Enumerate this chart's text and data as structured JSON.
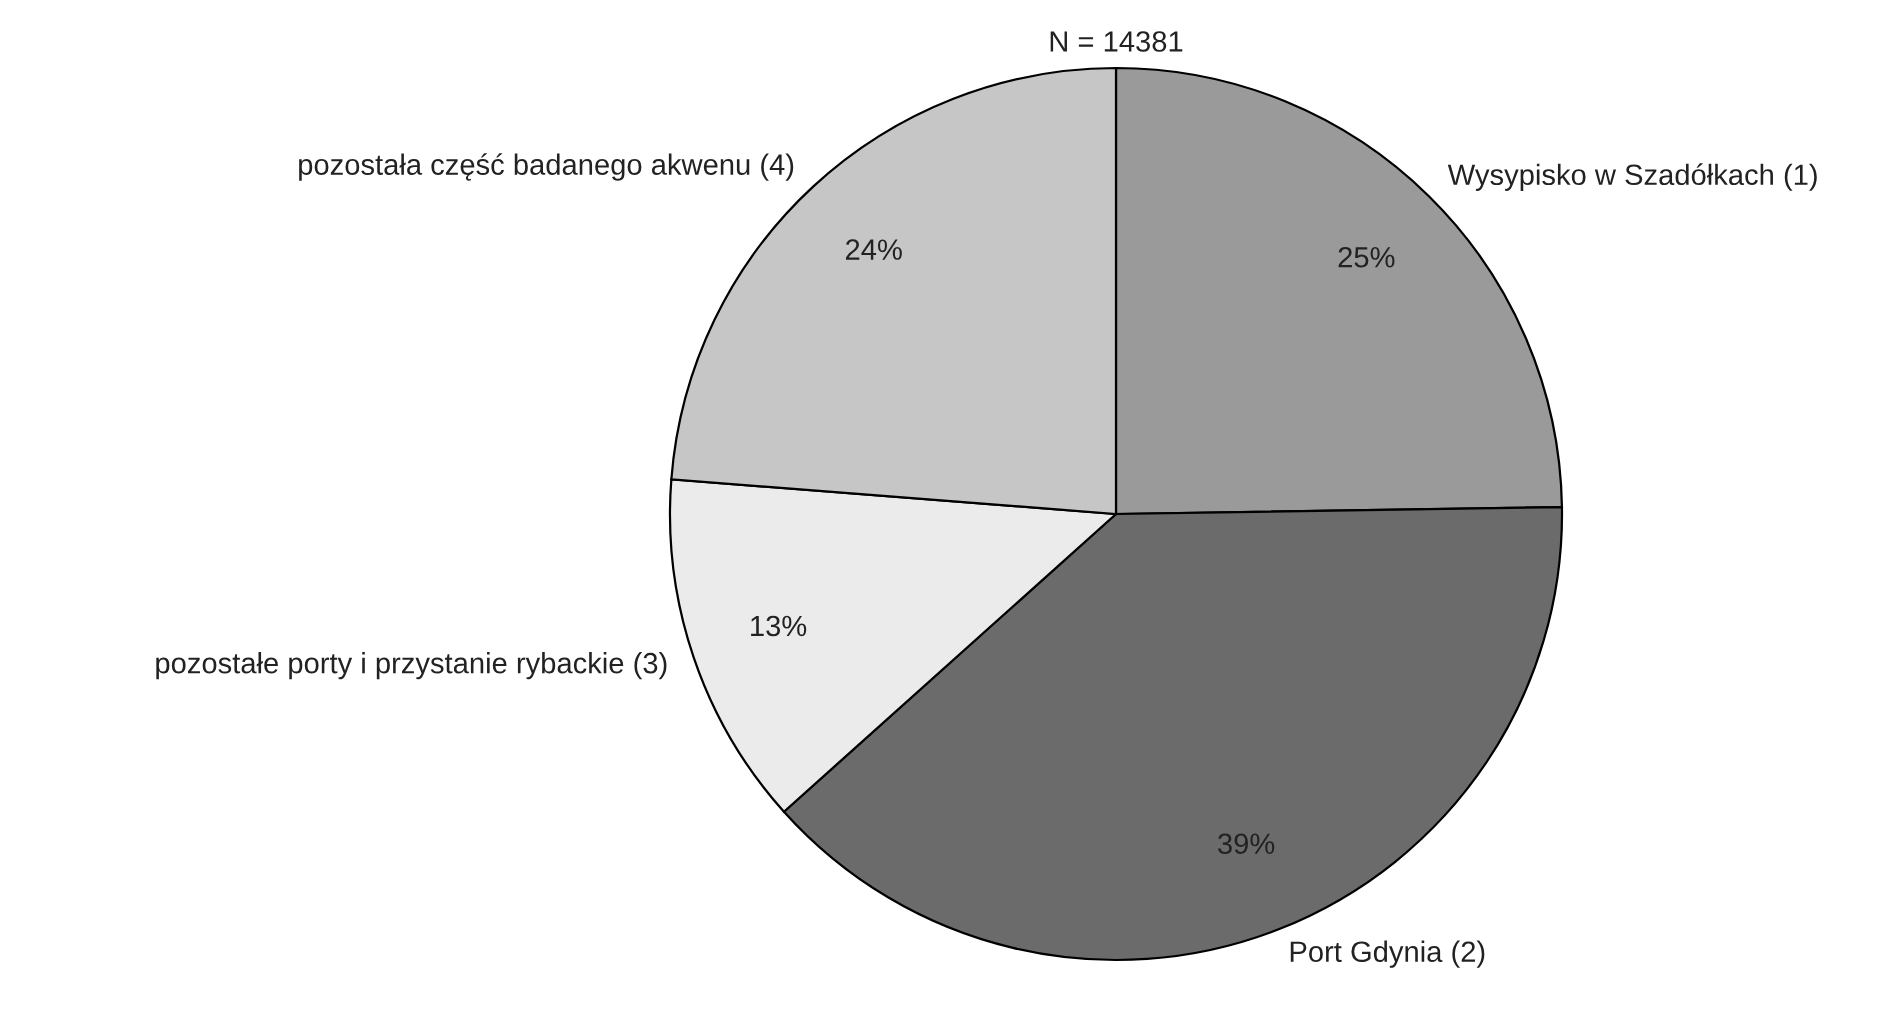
{
  "chart_data": {
    "type": "pie",
    "title": "N = 14381",
    "categories": [
      "Wysypisko w Szadółkach (1)",
      "Port Gdynia (2)",
      "pozostałe porty i przystanie rybackie (3)",
      "pozostała część badanego akwenu (4)"
    ],
    "values": [
      25,
      39,
      13,
      24
    ],
    "colors": [
      "#9a9a9a",
      "#6b6b6b",
      "#ebebeb",
      "#c6c6c6"
    ],
    "value_labels": [
      "25%",
      "39%",
      "13%",
      "24%"
    ],
    "legend": false
  }
}
